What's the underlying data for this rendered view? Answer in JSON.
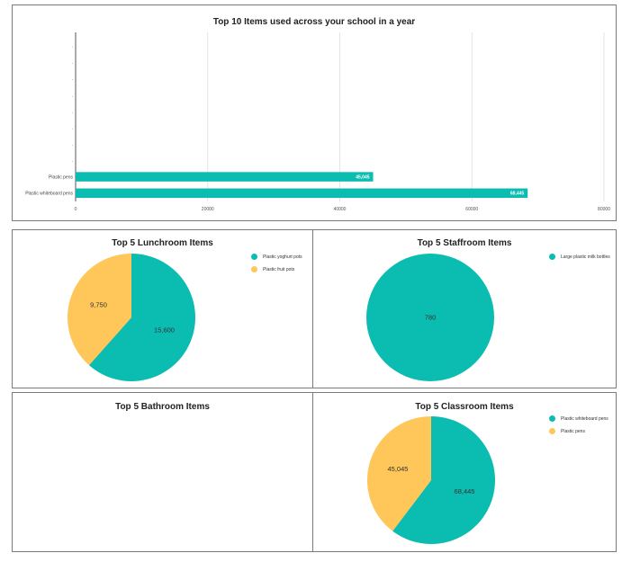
{
  "colors": {
    "teal": "#0bbcb0",
    "yellow": "#ffc65a",
    "grid": "#dddddd",
    "axis": "#555555"
  },
  "chart_data": [
    {
      "id": "bar",
      "type": "bar",
      "orientation": "horizontal",
      "title": "Top 10 Items used across your school in a year",
      "categories": [
        ".",
        ".",
        ".",
        ".",
        ".",
        ".",
        ".",
        ".",
        "Plastic pens",
        "Plastic whiteboard pens"
      ],
      "values": [
        null,
        null,
        null,
        null,
        null,
        null,
        null,
        null,
        45045,
        68445
      ],
      "value_labels": [
        "",
        "",
        "",
        "",
        "",
        "",
        "",
        "",
        "45,045",
        "68,445"
      ],
      "xlim": [
        0,
        80000
      ],
      "xticks": [
        "0",
        "20000",
        "40000",
        "60000",
        "80000"
      ],
      "xtick_values": [
        0,
        20000,
        40000,
        60000,
        80000
      ],
      "grid": true,
      "color": "#0bbcb0"
    },
    {
      "id": "lunch",
      "type": "pie",
      "title": "Top 5 Lunchroom Items",
      "labels": [
        "Plastic yoghurt pots",
        "Plastic fruit pots"
      ],
      "values": [
        15600,
        9750
      ],
      "value_labels": [
        "15,600",
        "9,750"
      ],
      "colors": [
        "#0bbcb0",
        "#ffc65a"
      ],
      "legend": "top-right"
    },
    {
      "id": "staff",
      "type": "pie",
      "title": "Top 5 Staffroom Items",
      "labels": [
        "Large plastic milk bottles"
      ],
      "values": [
        780
      ],
      "value_labels": [
        "780"
      ],
      "colors": [
        "#0bbcb0"
      ],
      "legend": "top-right"
    },
    {
      "id": "bath",
      "type": "pie",
      "title": "Top 5 Bathroom Items",
      "labels": [],
      "values": [],
      "value_labels": [],
      "colors": [],
      "legend": "top-right"
    },
    {
      "id": "class",
      "type": "pie",
      "title": "Top 5 Classroom Items",
      "labels": [
        "Plastic whiteboard pens",
        "Plastic pens"
      ],
      "values": [
        68445,
        45045
      ],
      "value_labels": [
        "68,445",
        "45,045"
      ],
      "colors": [
        "#0bbcb0",
        "#ffc65a"
      ],
      "legend": "top-right"
    }
  ]
}
